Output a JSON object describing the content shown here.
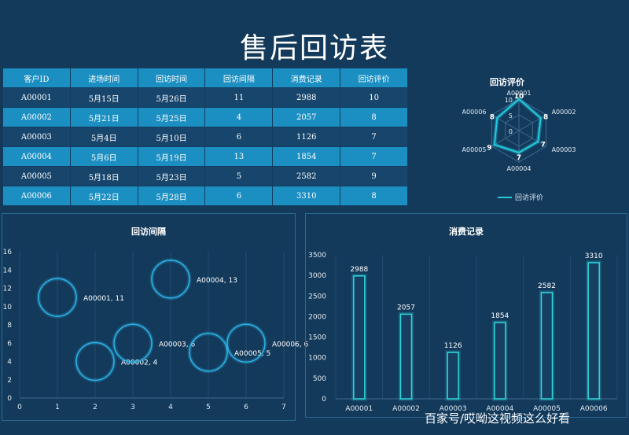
{
  "title": "售后回访表",
  "table": {
    "headers": [
      "客户ID",
      "进场时间",
      "回访时间",
      "回访间隔",
      "消费记录",
      "回访评价"
    ],
    "rows": [
      [
        "A00001",
        "5月15日",
        "5月26日",
        "11",
        "2988",
        "10"
      ],
      [
        "A00002",
        "5月21日",
        "5月25日",
        "4",
        "2057",
        "8"
      ],
      [
        "A00003",
        "5月4日",
        "5月10日",
        "6",
        "1126",
        "7"
      ],
      [
        "A00004",
        "5月6日",
        "5月19日",
        "13",
        "1854",
        "7"
      ],
      [
        "A00005",
        "5月18日",
        "5月23日",
        "5",
        "2582",
        "9"
      ],
      [
        "A00006",
        "5月22日",
        "5月28日",
        "6",
        "3310",
        "8"
      ]
    ]
  },
  "chart_data": [
    {
      "type": "radar",
      "title": "回访评价",
      "categories": [
        "A00001",
        "A00002",
        "A00003",
        "A00004",
        "A00005",
        "A00006"
      ],
      "series": [
        {
          "name": "回访评价",
          "values": [
            10,
            8,
            7,
            7,
            9,
            8
          ]
        }
      ],
      "rlim": [
        0,
        10
      ],
      "rticks": [
        0,
        5,
        10
      ],
      "legend": "bottom",
      "color": "#23c8dc"
    },
    {
      "type": "scatter",
      "title": "回访间隔",
      "x": [
        1,
        2,
        3,
        4,
        5,
        6
      ],
      "y": [
        11,
        4,
        6,
        13,
        5,
        6
      ],
      "point_labels": [
        "A00001, 11",
        "A00002, 4",
        "A00003, 6",
        "A00004, 13",
        "A00005, 5",
        "A00006, 6"
      ],
      "xlim": [
        0,
        7
      ],
      "ylim": [
        0,
        16
      ],
      "xticks": [
        0,
        1,
        2,
        3,
        4,
        5,
        6,
        7
      ],
      "yticks": [
        0,
        2,
        4,
        6,
        8,
        10,
        12,
        14,
        16
      ],
      "color": "#2bb3e6"
    },
    {
      "type": "bar",
      "title": "消费记录",
      "categories": [
        "A00001",
        "A00002",
        "A00003",
        "A00004",
        "A00005",
        "A00006"
      ],
      "values": [
        2988,
        2057,
        1126,
        1854,
        2582,
        3310
      ],
      "ylim": [
        0,
        3500
      ],
      "yticks": [
        0,
        500,
        1000,
        1500,
        2000,
        2500,
        3000,
        3500
      ],
      "color": "#2fd6dd"
    }
  ],
  "watermark": "百家号/哎呦这视频这么好看"
}
